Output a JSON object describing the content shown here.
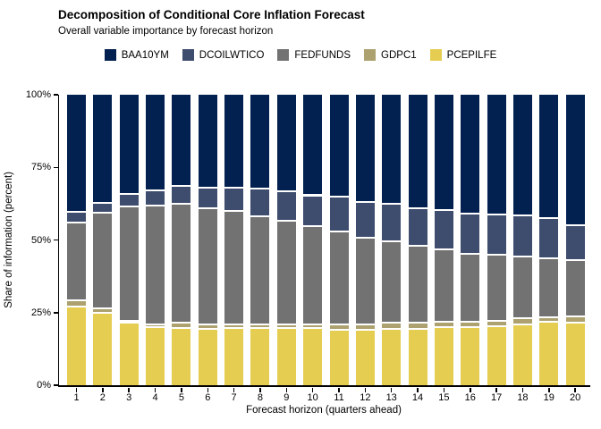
{
  "header": {
    "title": "Decomposition of Conditional Core Inflation Forecast",
    "subtitle": "Overall variable importance by forecast horizon"
  },
  "chart_data": {
    "type": "bar",
    "variant": "stacked-100-percent",
    "title": "Decomposition of Conditional Core Inflation Forecast",
    "subtitle": "Overall variable importance by forecast horizon",
    "xlabel": "Forecast horizon (quarters ahead)",
    "ylabel": "Share of information (percent)",
    "categories": [
      "1",
      "2",
      "3",
      "4",
      "5",
      "6",
      "7",
      "8",
      "9",
      "10",
      "11",
      "12",
      "13",
      "14",
      "15",
      "16",
      "17",
      "18",
      "19",
      "20"
    ],
    "y_ticks": [
      {
        "value": 0,
        "label": "0%"
      },
      {
        "value": 25,
        "label": "25%"
      },
      {
        "value": 50,
        "label": "50%"
      },
      {
        "value": 75,
        "label": "75%"
      },
      {
        "value": 100,
        "label": "100%"
      }
    ],
    "ylim": [
      0,
      100
    ],
    "grid": false,
    "legend_position": "top",
    "stack_order_bottom_to_top": [
      "PCEPILFE",
      "GDPC1",
      "FEDFUNDS",
      "DCOILWTICO",
      "BAA10YM"
    ],
    "separator_color": "#ffffff",
    "series": [
      {
        "name": "BAA10YM",
        "color": "#032150",
        "values": [
          40.0,
          37.0,
          33.7,
          32.6,
          31.2,
          31.6,
          31.6,
          31.9,
          32.9,
          34.3,
          34.7,
          36.5,
          37.2,
          38.7,
          39.4,
          40.6,
          41.0,
          41.2,
          42.2,
          44.5
        ]
      },
      {
        "name": "DCOILWTICO",
        "color": "#3E4D6E",
        "values": [
          3.7,
          3.4,
          4.3,
          5.1,
          6.1,
          7.3,
          8.0,
          9.6,
          10.3,
          10.6,
          12.0,
          12.3,
          12.8,
          12.9,
          13.5,
          13.8,
          13.8,
          14.1,
          13.8,
          12.0
        ]
      },
      {
        "name": "FEDFUNDS",
        "color": "#727272",
        "values": [
          26.7,
          32.7,
          39.4,
          41.1,
          40.9,
          40.0,
          39.1,
          37.2,
          35.5,
          33.8,
          32.0,
          29.9,
          28.1,
          26.5,
          24.8,
          23.3,
          22.6,
          21.4,
          20.4,
          19.4
        ]
      },
      {
        "name": "GDPC1",
        "color": "#ACA16F",
        "values": [
          2.1,
          1.6,
          0.9,
          1.0,
          1.7,
          1.4,
          1.3,
          1.3,
          1.3,
          1.3,
          1.8,
          1.8,
          2.1,
          2.1,
          2.1,
          2.1,
          2.0,
          2.0,
          1.5,
          2.1
        ]
      },
      {
        "name": "PCEPILFE",
        "color": "#E5CD52",
        "values": [
          27.5,
          25.3,
          21.7,
          20.2,
          20.1,
          19.7,
          20.0,
          20.0,
          20.0,
          20.0,
          19.5,
          19.5,
          19.8,
          19.8,
          20.2,
          20.2,
          20.6,
          21.3,
          22.1,
          22.0
        ]
      }
    ]
  }
}
